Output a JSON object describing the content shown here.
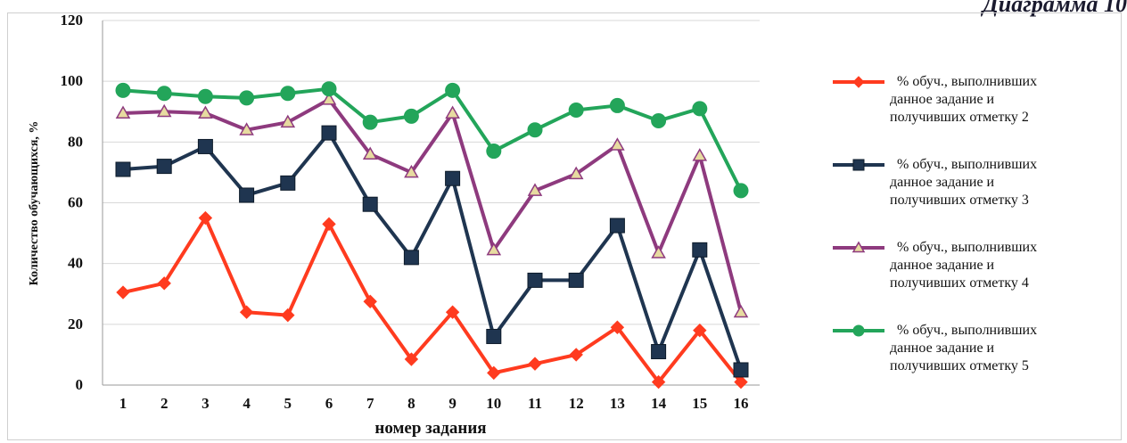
{
  "caption": "Диаграмма 10",
  "chart_data": {
    "type": "line",
    "xlabel": "номер задания",
    "ylabel": "Количество обучающихся, %",
    "ylim": [
      0,
      120
    ],
    "yticks": [
      0,
      20,
      40,
      60,
      80,
      100,
      120
    ],
    "categories": [
      "1",
      "2",
      "3",
      "4",
      "5",
      "6",
      "7",
      "8",
      "9",
      "10",
      "11",
      "12",
      "13",
      "14",
      "15",
      "16"
    ],
    "grid": true,
    "legend_position": "right",
    "series": [
      {
        "name": "% обуч., выполнивших данное задание и получивших отметку 2",
        "color": "#ff3b1f",
        "marker": "diamond",
        "values": [
          30.5,
          33.5,
          55,
          24,
          23,
          53,
          27.5,
          8.5,
          24,
          4,
          7,
          10,
          19,
          1,
          18,
          1
        ]
      },
      {
        "name": "% обуч., выполнивших данное задание и получивших отметку 3",
        "color": "#1f3550",
        "marker": "square",
        "values": [
          71,
          72,
          78.5,
          62.5,
          66.5,
          83,
          59.5,
          42,
          68,
          16,
          34.5,
          34.5,
          52.5,
          11,
          44.5,
          5
        ]
      },
      {
        "name": "% обуч., выполнивших данное задание и получивших отметку 4",
        "color": "#8e3a7e",
        "marker": "triangle",
        "values": [
          89.5,
          90,
          89.5,
          84,
          86.5,
          94,
          76,
          70,
          89.5,
          44.5,
          64,
          69.5,
          79,
          43.5,
          75.5,
          24
        ]
      },
      {
        "name": "% обуч., выполнивших данное задание и получивших отметку 5",
        "color": "#23a55a",
        "marker": "circle",
        "values": [
          97,
          96,
          95,
          94.5,
          96,
          97.5,
          86.5,
          88.5,
          97,
          77,
          84,
          90.5,
          92,
          87,
          91,
          64
        ]
      }
    ]
  },
  "legend": [
    {
      "line1": "% обуч., выполнивших",
      "line2": "данное задание и",
      "line3": "получивших отметку 2"
    },
    {
      "line1": "% обуч., выполнивших",
      "line2": "данное задание и",
      "line3": "получивших отметку 3"
    },
    {
      "line1": "% обуч., выполнивших",
      "line2": "данное задание и",
      "line3": "получивших отметку 4"
    },
    {
      "line1": "% обуч., выполнивших",
      "line2": "данное задание и",
      "line3": "получивших отметку 5"
    }
  ]
}
